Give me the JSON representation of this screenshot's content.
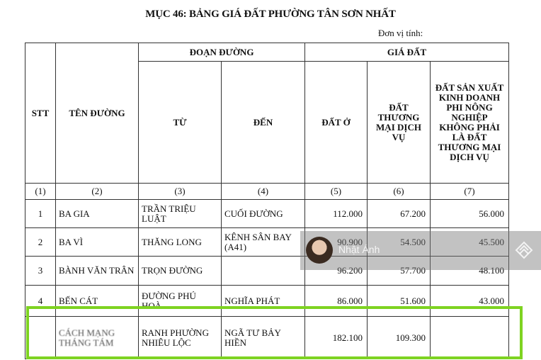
{
  "title": "MỤC 46: BẢNG GIÁ ĐẤT PHƯỜNG TÂN SƠN NHẤT",
  "unit": "Đơn vị tính:",
  "headers": {
    "stt": "STT",
    "ten_duong": "TÊN ĐƯỜNG",
    "doan_duong": "ĐOẠN ĐƯỜNG",
    "gia_dat": "GIÁ ĐẤT",
    "tu": "TỪ",
    "den": "ĐẾN",
    "dat_o": "ĐẤT Ở",
    "dat_tmdv": "ĐẤT THƯƠNG MẠI DỊCH VỤ",
    "dat_sxkd": "ĐẤT SẢN XUẤT KINH DOANH PHI NÔNG NGHIỆP KHÔNG PHẢI LÀ ĐẤT THƯƠNG MẠI DỊCH VỤ"
  },
  "col_numbers": [
    "(1)",
    "(2)",
    "(3)",
    "(4)",
    "(5)",
    "(6)",
    "(7)"
  ],
  "rows": [
    {
      "stt": "1",
      "name": "BA GIA",
      "from": "TRẦN TRIỆU LUẬT",
      "to": "CUỐI ĐƯỜNG",
      "o": "112.000",
      "tmdv": "67.200",
      "sxkd": "56.000"
    },
    {
      "stt": "2",
      "name": "BA VÌ",
      "from": "THĂNG LONG",
      "to": "KÊNH SÂN BAY (A41)",
      "o": "90.900",
      "tmdv": "54.500",
      "sxkd": "45.500"
    },
    {
      "stt": "3",
      "name": "BÀNH VĂN TRÂN",
      "from": "TRỌN ĐƯỜNG",
      "to": "",
      "o": "96.200",
      "tmdv": "57.700",
      "sxkd": "48.100"
    },
    {
      "stt": "4",
      "name": "BẾN CÁT",
      "from": "ĐƯỜNG PHÚ HOÀ",
      "to": "NGHĨA PHÁT",
      "o": "86.000",
      "tmdv": "51.600",
      "sxkd": "43.000"
    },
    {
      "stt": "",
      "name": "CÁCH MẠNG THÁNG TÁM",
      "from": "RANH PHƯỜNG NHIÊU LỘC",
      "to": "NGÃ TƯ BẢY HIỀN",
      "o": "182.100",
      "tmdv": "109.300",
      "sxkd": ""
    }
  ],
  "watermark": {
    "name": "Nhật Ánh"
  },
  "highlight_color": "#7ed321"
}
